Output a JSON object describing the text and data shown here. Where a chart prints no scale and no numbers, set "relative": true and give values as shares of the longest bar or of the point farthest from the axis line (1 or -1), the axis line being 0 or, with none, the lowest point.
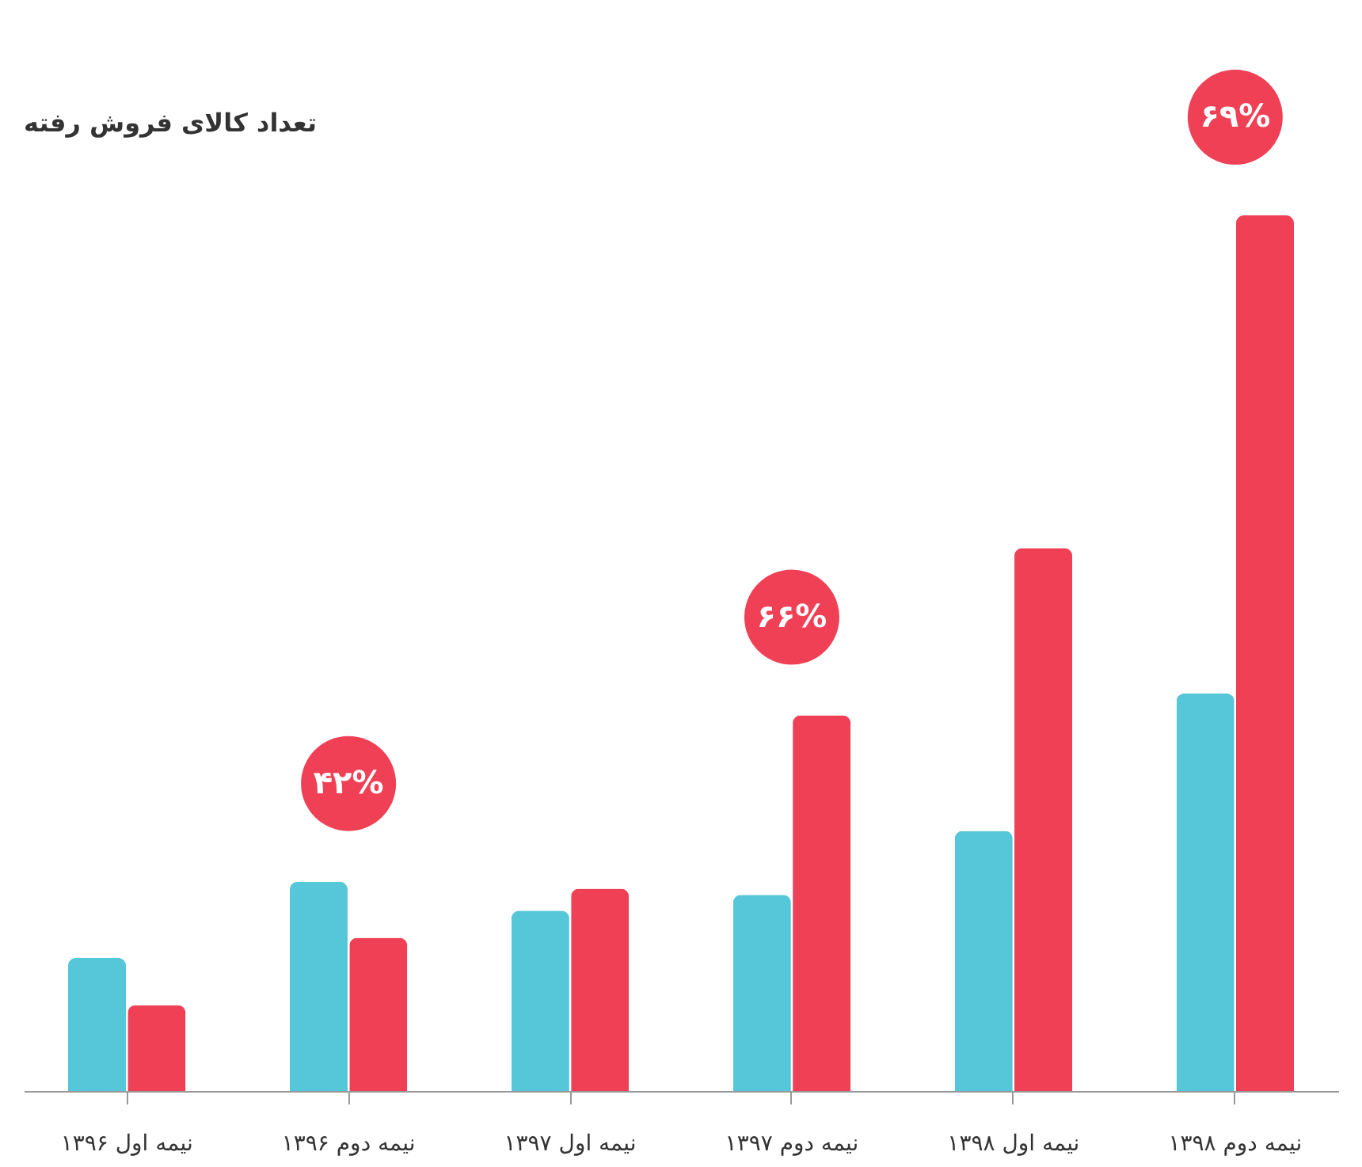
{
  "chart_data": {
    "type": "bar",
    "title": "تعداد کالای فروش رفته",
    "relative": true,
    "categories": [
      "نیمه اول ۱۳۹۶",
      "نیمه دوم ۱۳۹۶",
      "نیمه اول ۱۳۹۷",
      "نیمه دوم ۱۳۹۷",
      "نیمه اول ۱۳۹۸",
      "نیمه دوم ۱۳۹۸"
    ],
    "series": [
      {
        "color": "#56c6d9",
        "values": [
          0.152,
          0.239,
          0.206,
          0.224,
          0.297,
          0.454
        ]
      },
      {
        "color": "#ef4056",
        "values": [
          0.098,
          0.175,
          0.231,
          0.429,
          0.62,
          1
        ]
      }
    ],
    "annotations": [
      {
        "text": "۴۲%",
        "x": "نیمه دوم ۱۳۹۶",
        "y": 0.239
      },
      {
        "text": "۶۶%",
        "x": "نیمه دوم ۱۳۹۷",
        "y": 0.429
      },
      {
        "text": "۶۹%",
        "x": "نیمه دوم ۱۳۹۸",
        "y": 1
      }
    ],
    "grid": false,
    "legend": false
  }
}
